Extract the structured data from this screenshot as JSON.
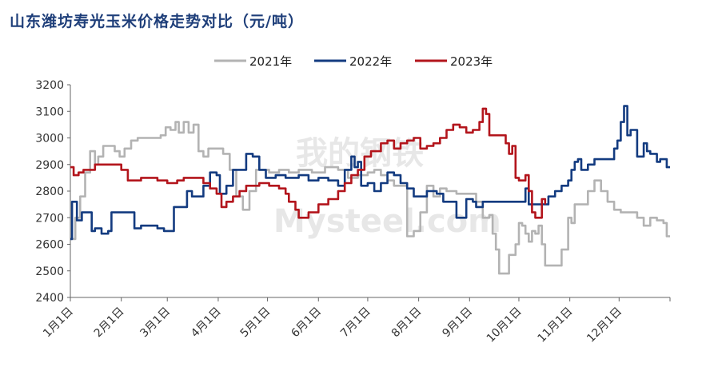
{
  "title": "山东潍坊寿光玉米价格走势对比（元/吨）",
  "watermark": {
    "cn": "我的钢铁",
    "en": "Mysteel.com"
  },
  "chart_data": {
    "type": "line",
    "title": "山东潍坊寿光玉米价格走势对比（元/吨）",
    "xlabel": "",
    "ylabel": "",
    "xlim": [
      1,
      366
    ],
    "ylim": [
      2400,
      3200
    ],
    "yticks": [
      2400,
      2500,
      2600,
      2700,
      2800,
      2900,
      3000,
      3100,
      3200
    ],
    "grid": false,
    "legend_position": "top-center",
    "x_ticks": [
      {
        "day": 1,
        "label": "1月1日"
      },
      {
        "day": 32,
        "label": "2月1日"
      },
      {
        "day": 60,
        "label": "3月1日"
      },
      {
        "day": 91,
        "label": "4月1日"
      },
      {
        "day": 121,
        "label": "5月1日"
      },
      {
        "day": 152,
        "label": "6月1日"
      },
      {
        "day": 182,
        "label": "7月1日"
      },
      {
        "day": 213,
        "label": "8月1日"
      },
      {
        "day": 244,
        "label": "9月1日"
      },
      {
        "day": 274,
        "label": "10月1日"
      },
      {
        "day": 305,
        "label": "11月1日"
      },
      {
        "day": 335,
        "label": "12月1日"
      }
    ],
    "series": [
      {
        "name": "2021年",
        "color": "#b3b3b3",
        "points": [
          [
            1,
            2620
          ],
          [
            4,
            2700
          ],
          [
            7,
            2780
          ],
          [
            10,
            2870
          ],
          [
            13,
            2950
          ],
          [
            16,
            2900
          ],
          [
            18,
            2930
          ],
          [
            21,
            2970
          ],
          [
            26,
            2970
          ],
          [
            28,
            2950
          ],
          [
            31,
            2930
          ],
          [
            34,
            2960
          ],
          [
            38,
            2990
          ],
          [
            42,
            3000
          ],
          [
            52,
            3000
          ],
          [
            56,
            3010
          ],
          [
            59,
            3040
          ],
          [
            62,
            3030
          ],
          [
            65,
            3060
          ],
          [
            67,
            3020
          ],
          [
            70,
            3060
          ],
          [
            73,
            3020
          ],
          [
            76,
            3050
          ],
          [
            79,
            2950
          ],
          [
            82,
            2930
          ],
          [
            85,
            2960
          ],
          [
            90,
            2960
          ],
          [
            94,
            2940
          ],
          [
            98,
            2880
          ],
          [
            102,
            2780
          ],
          [
            106,
            2730
          ],
          [
            110,
            2800
          ],
          [
            114,
            2880
          ],
          [
            122,
            2870
          ],
          [
            128,
            2880
          ],
          [
            134,
            2870
          ],
          [
            140,
            2880
          ],
          [
            148,
            2870
          ],
          [
            156,
            2890
          ],
          [
            164,
            2880
          ],
          [
            170,
            2850
          ],
          [
            176,
            2860
          ],
          [
            182,
            2870
          ],
          [
            186,
            2880
          ],
          [
            190,
            2860
          ],
          [
            194,
            2840
          ],
          [
            198,
            2820
          ],
          [
            202,
            2820
          ],
          [
            206,
            2630
          ],
          [
            210,
            2650
          ],
          [
            214,
            2720
          ],
          [
            218,
            2820
          ],
          [
            222,
            2780
          ],
          [
            226,
            2810
          ],
          [
            230,
            2800
          ],
          [
            236,
            2790
          ],
          [
            244,
            2790
          ],
          [
            248,
            2760
          ],
          [
            252,
            2700
          ],
          [
            256,
            2710
          ],
          [
            258,
            2640
          ],
          [
            260,
            2580
          ],
          [
            262,
            2490
          ],
          [
            266,
            2490
          ],
          [
            268,
            2560
          ],
          [
            272,
            2600
          ],
          [
            274,
            2680
          ],
          [
            276,
            2670
          ],
          [
            278,
            2640
          ],
          [
            280,
            2610
          ],
          [
            282,
            2650
          ],
          [
            284,
            2640
          ],
          [
            286,
            2670
          ],
          [
            288,
            2600
          ],
          [
            290,
            2520
          ],
          [
            296,
            2520
          ],
          [
            300,
            2580
          ],
          [
            304,
            2700
          ],
          [
            306,
            2680
          ],
          [
            308,
            2750
          ],
          [
            312,
            2750
          ],
          [
            316,
            2800
          ],
          [
            320,
            2840
          ],
          [
            324,
            2800
          ],
          [
            328,
            2760
          ],
          [
            332,
            2730
          ],
          [
            336,
            2720
          ],
          [
            342,
            2720
          ],
          [
            346,
            2700
          ],
          [
            350,
            2670
          ],
          [
            354,
            2700
          ],
          [
            358,
            2690
          ],
          [
            362,
            2680
          ],
          [
            364,
            2630
          ],
          [
            366,
            2630
          ]
        ]
      },
      {
        "name": "2022年",
        "color": "#133b80",
        "points": [
          [
            1,
            2620
          ],
          [
            2,
            2760
          ],
          [
            5,
            2690
          ],
          [
            8,
            2720
          ],
          [
            12,
            2720
          ],
          [
            14,
            2650
          ],
          [
            16,
            2660
          ],
          [
            20,
            2640
          ],
          [
            22,
            2640
          ],
          [
            24,
            2650
          ],
          [
            26,
            2720
          ],
          [
            38,
            2720
          ],
          [
            40,
            2660
          ],
          [
            44,
            2670
          ],
          [
            52,
            2670
          ],
          [
            54,
            2660
          ],
          [
            58,
            2650
          ],
          [
            62,
            2650
          ],
          [
            64,
            2740
          ],
          [
            70,
            2740
          ],
          [
            72,
            2800
          ],
          [
            75,
            2780
          ],
          [
            80,
            2780
          ],
          [
            82,
            2820
          ],
          [
            86,
            2870
          ],
          [
            90,
            2860
          ],
          [
            92,
            2790
          ],
          [
            96,
            2820
          ],
          [
            100,
            2880
          ],
          [
            104,
            2880
          ],
          [
            108,
            2940
          ],
          [
            112,
            2930
          ],
          [
            116,
            2880
          ],
          [
            120,
            2850
          ],
          [
            126,
            2860
          ],
          [
            132,
            2850
          ],
          [
            140,
            2860
          ],
          [
            146,
            2840
          ],
          [
            152,
            2850
          ],
          [
            158,
            2840
          ],
          [
            164,
            2820
          ],
          [
            168,
            2880
          ],
          [
            172,
            2930
          ],
          [
            174,
            2890
          ],
          [
            176,
            2910
          ],
          [
            178,
            2820
          ],
          [
            182,
            2830
          ],
          [
            186,
            2800
          ],
          [
            190,
            2830
          ],
          [
            194,
            2870
          ],
          [
            198,
            2860
          ],
          [
            202,
            2830
          ],
          [
            206,
            2810
          ],
          [
            210,
            2780
          ],
          [
            214,
            2780
          ],
          [
            218,
            2800
          ],
          [
            224,
            2790
          ],
          [
            228,
            2760
          ],
          [
            234,
            2760
          ],
          [
            236,
            2700
          ],
          [
            240,
            2700
          ],
          [
            242,
            2770
          ],
          [
            246,
            2760
          ],
          [
            248,
            2740
          ],
          [
            252,
            2760
          ],
          [
            256,
            2760
          ],
          [
            270,
            2760
          ],
          [
            276,
            2760
          ],
          [
            278,
            2810
          ],
          [
            280,
            2750
          ],
          [
            288,
            2750
          ],
          [
            292,
            2780
          ],
          [
            296,
            2800
          ],
          [
            300,
            2820
          ],
          [
            304,
            2840
          ],
          [
            306,
            2880
          ],
          [
            308,
            2910
          ],
          [
            310,
            2920
          ],
          [
            312,
            2880
          ],
          [
            316,
            2900
          ],
          [
            320,
            2920
          ],
          [
            330,
            2920
          ],
          [
            332,
            2960
          ],
          [
            334,
            2990
          ],
          [
            336,
            3060
          ],
          [
            338,
            3120
          ],
          [
            340,
            3010
          ],
          [
            342,
            3030
          ],
          [
            344,
            3030
          ],
          [
            346,
            2930
          ],
          [
            350,
            2980
          ],
          [
            352,
            2950
          ],
          [
            354,
            2940
          ],
          [
            356,
            2940
          ],
          [
            358,
            2910
          ],
          [
            360,
            2920
          ],
          [
            364,
            2890
          ],
          [
            366,
            2890
          ]
        ]
      },
      {
        "name": "2023年",
        "color": "#b3151c",
        "points": [
          [
            1,
            2890
          ],
          [
            3,
            2860
          ],
          [
            6,
            2870
          ],
          [
            9,
            2880
          ],
          [
            13,
            2880
          ],
          [
            16,
            2900
          ],
          [
            28,
            2900
          ],
          [
            32,
            2880
          ],
          [
            36,
            2840
          ],
          [
            42,
            2840
          ],
          [
            44,
            2850
          ],
          [
            48,
            2850
          ],
          [
            54,
            2840
          ],
          [
            60,
            2830
          ],
          [
            66,
            2840
          ],
          [
            70,
            2850
          ],
          [
            78,
            2850
          ],
          [
            82,
            2830
          ],
          [
            86,
            2810
          ],
          [
            90,
            2790
          ],
          [
            93,
            2740
          ],
          [
            96,
            2760
          ],
          [
            100,
            2780
          ],
          [
            104,
            2800
          ],
          [
            108,
            2820
          ],
          [
            112,
            2820
          ],
          [
            116,
            2830
          ],
          [
            122,
            2820
          ],
          [
            128,
            2810
          ],
          [
            132,
            2790
          ],
          [
            134,
            2760
          ],
          [
            138,
            2730
          ],
          [
            140,
            2700
          ],
          [
            146,
            2720
          ],
          [
            152,
            2750
          ],
          [
            158,
            2770
          ],
          [
            164,
            2800
          ],
          [
            168,
            2830
          ],
          [
            172,
            2860
          ],
          [
            176,
            2880
          ],
          [
            180,
            2930
          ],
          [
            184,
            2950
          ],
          [
            190,
            2980
          ],
          [
            194,
            2990
          ],
          [
            198,
            2960
          ],
          [
            202,
            2980
          ],
          [
            206,
            2990
          ],
          [
            210,
            3000
          ],
          [
            214,
            2960
          ],
          [
            218,
            2970
          ],
          [
            222,
            2980
          ],
          [
            226,
            3000
          ],
          [
            230,
            3030
          ],
          [
            234,
            3050
          ],
          [
            238,
            3040
          ],
          [
            242,
            3020
          ],
          [
            246,
            3030
          ],
          [
            250,
            3060
          ],
          [
            252,
            3110
          ],
          [
            254,
            3090
          ],
          [
            256,
            3010
          ],
          [
            262,
            3010
          ],
          [
            266,
            2980
          ],
          [
            268,
            2940
          ],
          [
            270,
            2970
          ],
          [
            272,
            2850
          ],
          [
            274,
            2840
          ],
          [
            278,
            2860
          ],
          [
            280,
            2800
          ],
          [
            282,
            2720
          ],
          [
            284,
            2700
          ],
          [
            286,
            2700
          ],
          [
            288,
            2770
          ],
          [
            290,
            2750
          ]
        ]
      }
    ]
  }
}
